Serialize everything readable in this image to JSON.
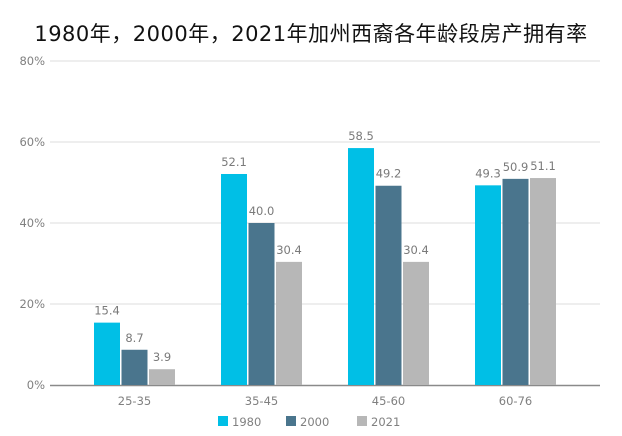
{
  "chart_data": {
    "type": "bar",
    "title": "1980年，2000年，2021年加州西裔各年龄段房产拥有率",
    "xlabel": "",
    "ylabel": "",
    "categories": [
      "25-35",
      "35-45",
      "45-60",
      "60-76"
    ],
    "series": [
      {
        "name": "1980",
        "color": "#00BFE6",
        "values": [
          15.4,
          52.1,
          58.5,
          49.3
        ]
      },
      {
        "name": "2000",
        "color": "#4A758D",
        "values": [
          8.7,
          40.0,
          49.2,
          50.9
        ]
      },
      {
        "name": "2021",
        "color": "#B7B7B7",
        "values": [
          3.9,
          30.4,
          30.4,
          51.1
        ]
      }
    ],
    "ylim": [
      0,
      80
    ],
    "yticks": [
      "0%",
      "20%",
      "40%",
      "60%",
      "80%"
    ],
    "grid": true,
    "legend": "bottom"
  }
}
